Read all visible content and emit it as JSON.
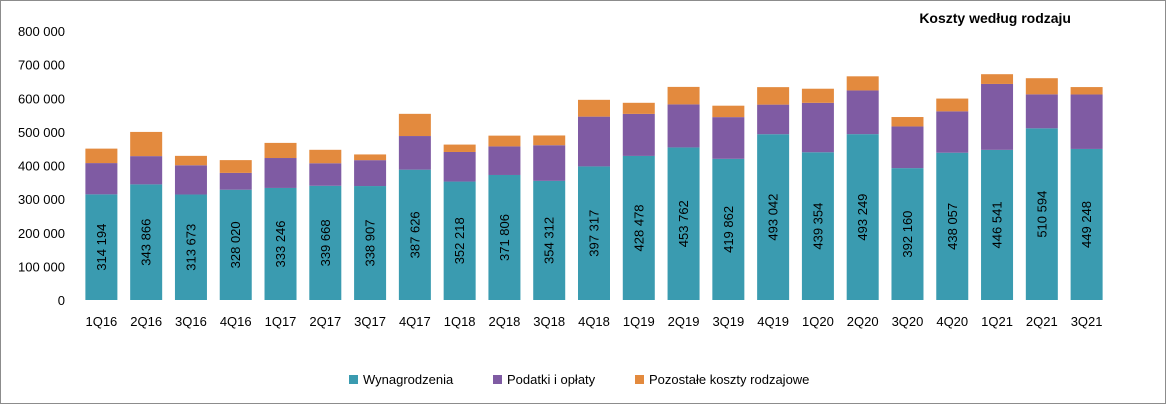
{
  "chart_data": {
    "type": "bar",
    "stacked": true,
    "title": "Koszty według rodzaju",
    "xlabel": "",
    "ylabel": "",
    "ylim": [
      0,
      800000
    ],
    "yticks": [
      {
        "value": 0,
        "label": "0"
      },
      {
        "value": 100000,
        "label": "100 000"
      },
      {
        "value": 200000,
        "label": "200 000"
      },
      {
        "value": 300000,
        "label": "300 000"
      },
      {
        "value": 400000,
        "label": "400 000"
      },
      {
        "value": 500000,
        "label": "500 000"
      },
      {
        "value": 600000,
        "label": "600 000"
      },
      {
        "value": 700000,
        "label": "700 000"
      },
      {
        "value": 800000,
        "label": "800 000"
      }
    ],
    "grid": false,
    "legend_position": "bottom",
    "categories": [
      "1Q16",
      "2Q16",
      "3Q16",
      "4Q16",
      "1Q17",
      "2Q17",
      "3Q17",
      "4Q17",
      "1Q18",
      "2Q18",
      "3Q18",
      "4Q18",
      "1Q19",
      "2Q19",
      "3Q19",
      "4Q19",
      "1Q20",
      "2Q20",
      "3Q20",
      "4Q20",
      "1Q21",
      "2Q21",
      "3Q21"
    ],
    "series": [
      {
        "name": "Wynagrodzenia",
        "color": "#3a9bb0",
        "values": [
          314194,
          343866,
          313673,
          328020,
          333246,
          339668,
          338907,
          387626,
          352218,
          371806,
          354312,
          397317,
          428478,
          453762,
          419862,
          493042,
          439354,
          493249,
          392160,
          438057,
          446541,
          510594,
          449248
        ],
        "labels": [
          "314 194",
          "343 866",
          "313 673",
          "328 020",
          "333 246",
          "339 668",
          "338 907",
          "387 626",
          "352 218",
          "371 806",
          "354 312",
          "397 317",
          "428 478",
          "453 762",
          "419 862",
          "493 042",
          "439 354",
          "493 249",
          "392 160",
          "438 057",
          "446 541",
          "510 594",
          "449 248"
        ]
      },
      {
        "name": "Podatki i opłaty",
        "color": "#7f5ba3",
        "values": [
          93000,
          84000,
          87000,
          50000,
          89000,
          67000,
          77000,
          100000,
          88000,
          85000,
          106000,
          148000,
          125000,
          128000,
          124000,
          88000,
          147000,
          130000,
          124000,
          123000,
          196000,
          101000,
          162000
        ]
      },
      {
        "name": "Pozostałe koszty rodzajowe",
        "color": "#e38a3e",
        "values": [
          43000,
          72000,
          28000,
          38000,
          45000,
          40000,
          17000,
          66000,
          22000,
          32000,
          29000,
          50000,
          33000,
          52000,
          34000,
          52000,
          42000,
          42000,
          28000,
          38000,
          29000,
          48000,
          22000
        ]
      }
    ]
  }
}
